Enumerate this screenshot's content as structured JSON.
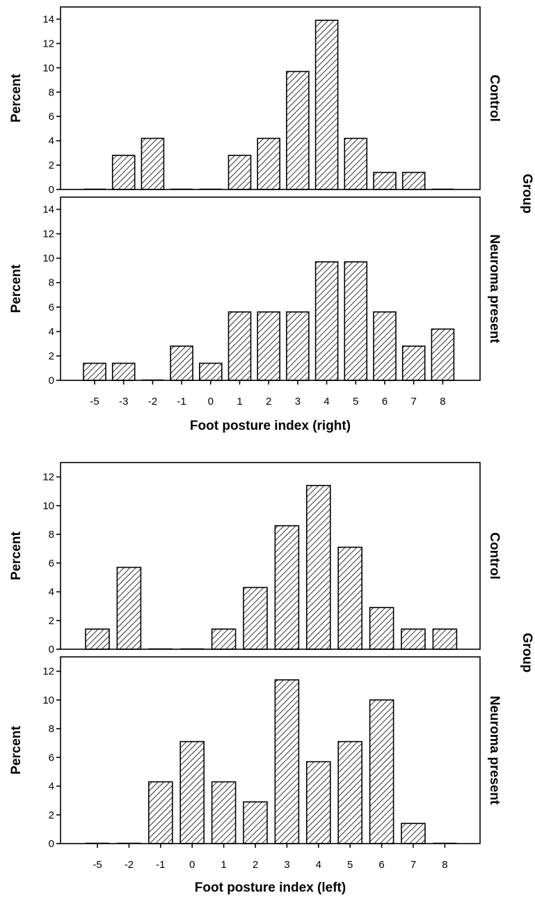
{
  "chart_data": [
    {
      "type": "bar",
      "xlabel": "Foot posture index (right)",
      "ylabel": "Percent",
      "facet_title": "Group",
      "categories": [
        "-5",
        "-3",
        "-2",
        "-1",
        "0",
        "1",
        "2",
        "3",
        "4",
        "5",
        "6",
        "7",
        "8"
      ],
      "ylim": [
        0,
        15
      ],
      "yticks": [
        0,
        2,
        4,
        6,
        8,
        10,
        12,
        14
      ],
      "grid": false,
      "series": [
        {
          "name": "Control",
          "values": [
            0,
            2.8,
            4.2,
            0,
            0,
            2.8,
            4.2,
            9.7,
            13.9,
            4.2,
            1.4,
            1.4,
            0
          ]
        },
        {
          "name": "Neuroma present",
          "values": [
            1.4,
            1.4,
            0,
            2.8,
            1.4,
            5.6,
            5.6,
            5.6,
            9.7,
            9.7,
            5.6,
            2.8,
            4.2
          ]
        }
      ]
    },
    {
      "type": "bar",
      "xlabel": "Foot posture index (left)",
      "ylabel": "Percent",
      "facet_title": "Group",
      "categories": [
        "-5",
        "-2",
        "-1",
        "0",
        "1",
        "2",
        "3",
        "4",
        "5",
        "6",
        "7",
        "8"
      ],
      "ylim": [
        0,
        13
      ],
      "yticks": [
        0,
        2,
        4,
        6,
        8,
        10,
        12
      ],
      "grid": false,
      "series": [
        {
          "name": "Control",
          "values": [
            1.4,
            5.7,
            0,
            0,
            1.4,
            4.3,
            8.6,
            11.4,
            7.1,
            2.9,
            1.4,
            1.4
          ]
        },
        {
          "name": "Neuroma present",
          "values": [
            0,
            0,
            4.3,
            7.1,
            4.3,
            2.9,
            11.4,
            5.7,
            7.1,
            10.0,
            1.4,
            0
          ]
        }
      ]
    }
  ]
}
